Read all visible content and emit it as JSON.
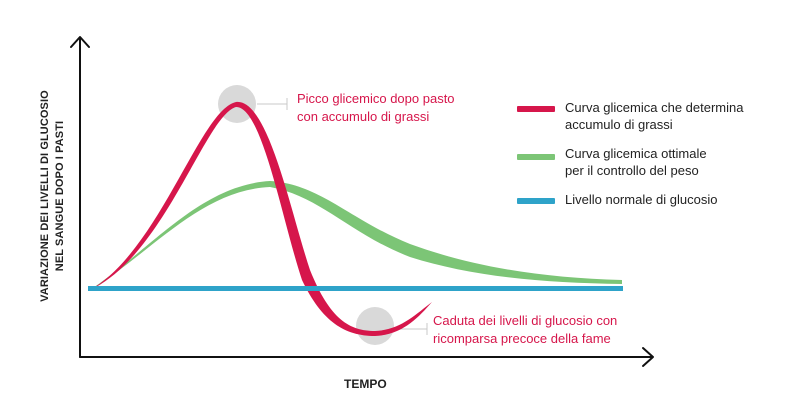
{
  "axes": {
    "y_label_line1": "VARIAZIONE DEI LIVELLI DI GLUCOSIO",
    "y_label_line2": "NEL SANGUE DOPO I PASTI",
    "x_label": "TEMPO"
  },
  "annotations": {
    "peak": {
      "line1": "Picco glicemico dopo pasto",
      "line2": "con accumulo di grassi"
    },
    "drop": {
      "line1": "Caduta dei livelli di glucosio con",
      "line2": "ricomparsa precoce della fame"
    }
  },
  "legend": [
    {
      "line1": "Curva glicemica che determina",
      "line2": "accumulo di grassi",
      "color": "#d6164b",
      "icon": "red-curve-swatch"
    },
    {
      "line1": "Curva glicemica ottimale",
      "line2": "per il controllo del peso",
      "color": "#7cc576",
      "icon": "green-curve-swatch"
    },
    {
      "line1": "Livello normale di glucosio",
      "line2": "",
      "color": "#2ea3c9",
      "icon": "blue-line-swatch"
    }
  ],
  "colors": {
    "axis": "#111111",
    "highlight_circle": "#d9d9d9",
    "annotation_text": "#d6164b"
  }
}
